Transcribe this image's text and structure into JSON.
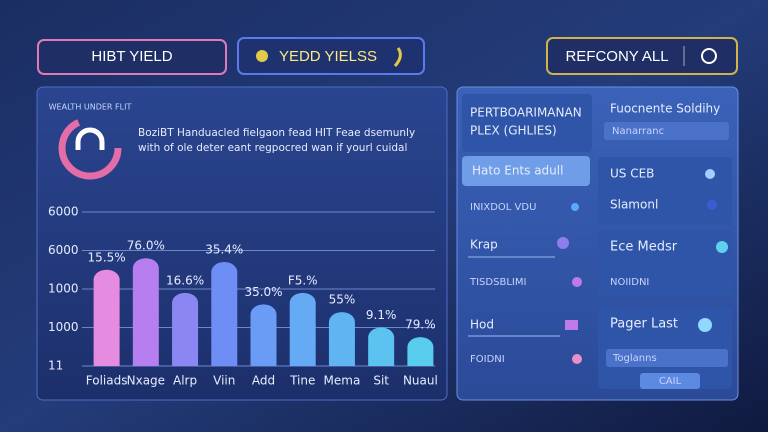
{
  "header": {
    "buttons": [
      "HIBT YIELD",
      "YEDD YIELSS",
      "REFCONY ALL"
    ]
  },
  "panel": {
    "logo_text": "WEALTH UNDER FLIT",
    "description": [
      "BoziBT Handuacled fielgaon fead HIT Feae dsemunly",
      "with of ole deter eant regpocred wan if yourl cuidal"
    ]
  },
  "chart_data": {
    "type": "bar",
    "categories": [
      "Foliads",
      "Nxage",
      "Alrp",
      "Viin",
      "Add",
      "Tine",
      "Mema",
      "Sit",
      "Nuaul"
    ],
    "values": [
      2.5,
      2.8,
      1.9,
      2.7,
      1.6,
      1.9,
      1.4,
      1.0,
      0.75
    ],
    "bar_labels": [
      "15.5%",
      "76.0%",
      "16.6%",
      "35.4%",
      "35.0%",
      "F5.%",
      "55%",
      "9.1%",
      "79.%"
    ],
    "colors": [
      "#e58ce0",
      "#b77ef0",
      "#8c86f2",
      "#6f8ef5",
      "#6a9cf5",
      "#64aaf4",
      "#5fb4f2",
      "#5cc2f0",
      "#58cdee"
    ],
    "ylim": [
      0,
      4
    ],
    "yticks": [
      {
        "value": 0,
        "label": "11"
      },
      {
        "value": 1,
        "label": "1000"
      },
      {
        "value": 2,
        "label": "1000"
      },
      {
        "value": 3,
        "label": "6000"
      },
      {
        "value": 4,
        "label": "6000"
      }
    ],
    "grid": true
  },
  "sidebar": {
    "left": {
      "title": [
        "PERTBOARIMANAN",
        "PLEX (GHLIES)"
      ],
      "items": [
        "Hato Ents adull",
        "INIXDOL VDU",
        "Krap",
        "TISDSBLIMI",
        "Hod",
        "FOIDNI"
      ]
    },
    "right": {
      "title": "Fuocnente Soldihy",
      "field": "Nanarranc",
      "items": [
        "US CEB",
        "Slamonl",
        "Ece Medsr",
        "NOIIDNI",
        "Pager Last",
        "Toglanns"
      ],
      "button": "CAIL"
    }
  }
}
